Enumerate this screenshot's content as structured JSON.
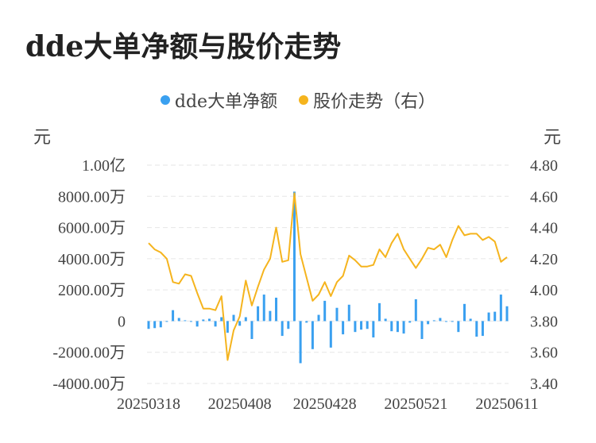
{
  "title": "dde大单净额与股价走势",
  "legend": {
    "series1": "dde大单净额",
    "series2": "股价走势（右）"
  },
  "units": {
    "left": "元",
    "right": "元"
  },
  "colors": {
    "bar": "#3aa0f0",
    "line": "#f5b41e",
    "grid": "#e6e6e6"
  },
  "chart_data": {
    "type": "bar",
    "title": "dde大单净额与股价走势",
    "x_tick_labels": [
      "20250318",
      "20250408",
      "20250428",
      "20250521",
      "20250611"
    ],
    "y_left": {
      "label": "元",
      "ylim": [
        -4000,
        10000
      ],
      "unit_note": "万",
      "ticks": [
        {
          "value": 10000,
          "label": "1.00亿"
        },
        {
          "value": 8000,
          "label": "8000.00万"
        },
        {
          "value": 6000,
          "label": "6000.00万"
        },
        {
          "value": 4000,
          "label": "4000.00万"
        },
        {
          "value": 2000,
          "label": "2000.00万"
        },
        {
          "value": 0,
          "label": "0"
        },
        {
          "value": -2000,
          "label": "-2000.00万"
        },
        {
          "value": -4000,
          "label": "-4000.00万"
        }
      ]
    },
    "y_right": {
      "label": "元",
      "ylim": [
        3.4,
        4.8
      ],
      "ticks": [
        {
          "value": 4.8,
          "label": "4.80"
        },
        {
          "value": 4.6,
          "label": "4.60"
        },
        {
          "value": 4.4,
          "label": "4.40"
        },
        {
          "value": 4.2,
          "label": "4.20"
        },
        {
          "value": 4.0,
          "label": "4.00"
        },
        {
          "value": 3.8,
          "label": "3.80"
        },
        {
          "value": 3.6,
          "label": "3.60"
        },
        {
          "value": 3.4,
          "label": "3.40"
        }
      ]
    },
    "grid": true,
    "legend_position": "top",
    "series": [
      {
        "name": "dde大单净额",
        "type": "bar",
        "axis": "left",
        "values": [
          -500,
          -450,
          -400,
          -50,
          700,
          200,
          50,
          -50,
          -350,
          100,
          150,
          -350,
          250,
          -750,
          400,
          -300,
          250,
          -1150,
          950,
          1700,
          650,
          1500,
          -950,
          -500,
          8300,
          -2700,
          -100,
          -1800,
          400,
          1300,
          -1700,
          850,
          -850,
          1050,
          -700,
          -550,
          -500,
          -1050,
          1150,
          150,
          -650,
          -700,
          -800,
          -100,
          1400,
          -1150,
          -200,
          50,
          200,
          -50,
          -50,
          -700,
          1100,
          150,
          -1000,
          -950,
          550,
          600,
          1700,
          950
        ]
      },
      {
        "name": "股价走势（右）",
        "type": "line",
        "axis": "right",
        "values": [
          4.3,
          4.26,
          4.24,
          4.2,
          4.05,
          4.04,
          4.1,
          4.09,
          3.98,
          3.88,
          3.88,
          3.87,
          3.96,
          3.55,
          3.74,
          3.83,
          4.06,
          3.9,
          4.02,
          4.13,
          4.2,
          4.4,
          4.18,
          4.19,
          4.62,
          4.23,
          4.08,
          3.93,
          3.97,
          4.05,
          3.96,
          4.05,
          4.09,
          4.22,
          4.19,
          4.15,
          4.15,
          4.16,
          4.26,
          4.21,
          4.3,
          4.36,
          4.26,
          4.2,
          4.14,
          4.2,
          4.27,
          4.26,
          4.29,
          4.21,
          4.32,
          4.41,
          4.35,
          4.36,
          4.36,
          4.32,
          4.34,
          4.31,
          4.18,
          4.21
        ]
      }
    ]
  }
}
